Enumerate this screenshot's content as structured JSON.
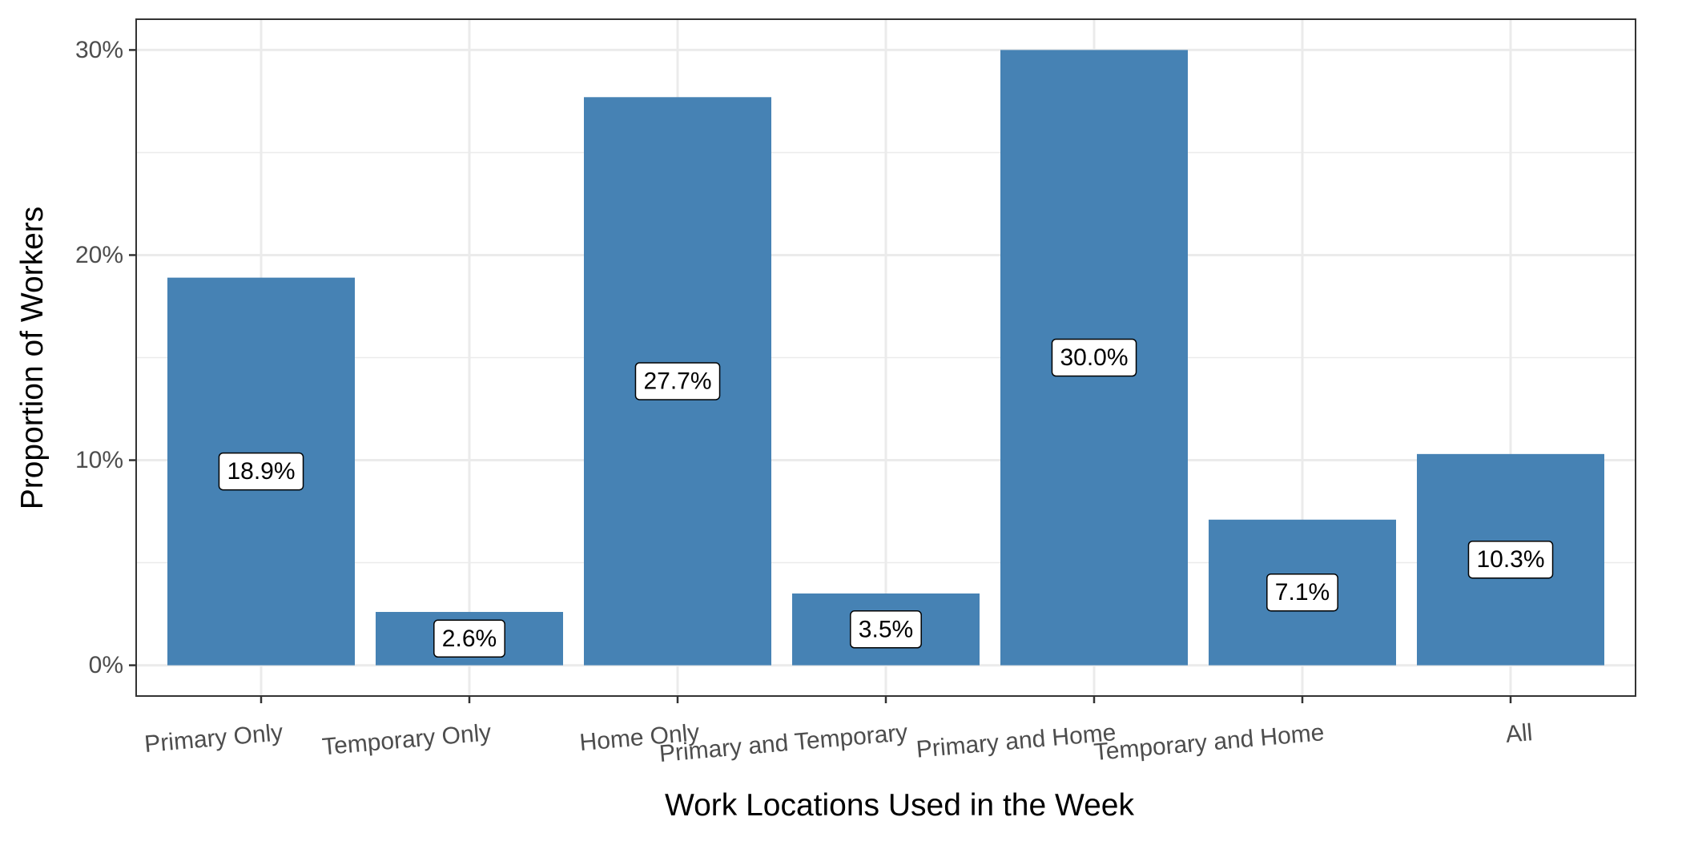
{
  "chart_data": {
    "type": "bar",
    "categories": [
      "Primary Only",
      "Temporary Only",
      "Home Only",
      "Primary and Temporary",
      "Primary and Home",
      "Temporary and Home",
      "All"
    ],
    "values": [
      18.9,
      2.6,
      27.7,
      3.5,
      30.0,
      7.1,
      10.3
    ],
    "data_labels": [
      "18.9%",
      "2.6%",
      "27.7%",
      "3.5%",
      "30.0%",
      "7.1%",
      "10.3%"
    ],
    "xlabel": "Work Locations Used in the Week",
    "ylabel": "Proportion of Workers",
    "ylim": [
      -1.5,
      31.5
    ],
    "yticks": [
      0,
      10,
      20,
      30
    ],
    "ytick_labels": [
      "0%",
      "10%",
      "20%",
      "30%"
    ],
    "grid": true,
    "legend": "none",
    "colors": {
      "bar": "#4682b4",
      "grid": "#ebebeb",
      "panel_border": "#333333",
      "label_fill": "#ffffff"
    }
  }
}
